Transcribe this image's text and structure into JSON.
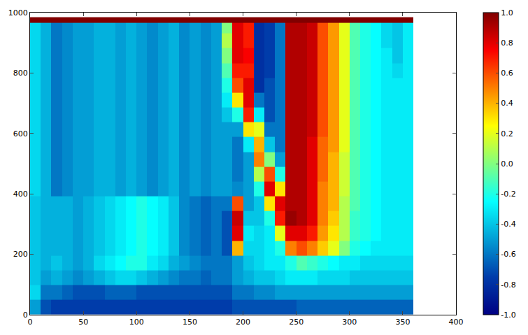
{
  "chart_data": {
    "type": "heatmap",
    "color": "Jet",
    "xlim": [
      0,
      400
    ],
    "xticks": [
      0,
      50,
      100,
      150,
      200,
      250,
      300,
      350,
      400
    ],
    "ylim": [
      0,
      1000
    ],
    "yticks": [
      0,
      200,
      400,
      600,
      800,
      1000
    ],
    "color_range": [
      -1,
      1
    ],
    "color_ticks": [
      {
        "value": -1,
        "label": "-1.0"
      },
      {
        "value": -0.8,
        "label": "-0.8"
      },
      {
        "value": -0.6,
        "label": "-0.6"
      },
      {
        "value": -0.4,
        "label": "-0.4"
      },
      {
        "value": -0.2,
        "label": "-0.2"
      },
      {
        "value": 0,
        "label": "0.0"
      },
      {
        "value": 0.2,
        "label": "0.2"
      },
      {
        "value": 0.4,
        "label": "0.4"
      },
      {
        "value": 0.6,
        "label": "0.6"
      },
      {
        "value": 0.8,
        "label": "0.8"
      },
      {
        "value": 1,
        "label": "1.0"
      }
    ],
    "x": [
      5,
      15,
      25,
      35,
      45,
      55,
      65,
      75,
      85,
      95,
      105,
      115,
      125,
      135,
      145,
      155,
      165,
      175,
      185,
      195,
      205,
      215,
      225,
      235,
      245,
      255,
      265,
      275,
      285,
      295,
      305,
      315,
      325,
      335,
      345,
      355
    ],
    "y": [
      24.5,
      73.5,
      122.5,
      171.5,
      220.5,
      269.5,
      318.5,
      367.5,
      416.5,
      465.5,
      514.5,
      563.5,
      612.5,
      661.5,
      710.5,
      759.5,
      808.5,
      857.5,
      906.5,
      955.5,
      975
    ],
    "cells": [
      [
        -0.5,
        -0.7,
        -0.75,
        -0.75,
        -0.75,
        -0.75,
        -0.75,
        -0.75,
        -0.75,
        -0.75,
        -0.75,
        -0.75,
        -0.75,
        -0.75,
        -0.75,
        -0.75,
        -0.75,
        -0.75,
        -0.75,
        -0.7,
        -0.7,
        -0.7,
        -0.7,
        -0.7,
        -0.7,
        -0.65,
        -0.65,
        -0.65,
        -0.65,
        -0.65,
        -0.65,
        -0.65,
        -0.65,
        -0.65,
        -0.65,
        -0.65
      ],
      [
        -0.35,
        -0.6,
        -0.6,
        -0.65,
        -0.7,
        -0.7,
        -0.7,
        -0.65,
        -0.65,
        -0.65,
        -0.7,
        -0.7,
        -0.7,
        -0.7,
        -0.7,
        -0.7,
        -0.7,
        -0.7,
        -0.7,
        -0.6,
        -0.6,
        -0.55,
        -0.55,
        -0.5,
        -0.5,
        -0.5,
        -0.5,
        -0.5,
        -0.5,
        -0.5,
        -0.5,
        -0.5,
        -0.5,
        -0.5,
        -0.5,
        -0.5
      ],
      [
        -0.4,
        -0.5,
        -0.45,
        -0.5,
        -0.55,
        -0.5,
        -0.45,
        -0.4,
        -0.35,
        -0.35,
        -0.4,
        -0.45,
        -0.5,
        -0.55,
        -0.6,
        -0.6,
        -0.65,
        -0.6,
        -0.6,
        -0.5,
        -0.45,
        -0.4,
        -0.4,
        -0.35,
        -0.3,
        -0.3,
        -0.3,
        -0.35,
        -0.35,
        -0.35,
        -0.4,
        -0.4,
        -0.4,
        -0.4,
        -0.4,
        -0.4
      ],
      [
        -0.4,
        -0.45,
        -0.4,
        -0.45,
        -0.5,
        -0.45,
        -0.35,
        -0.3,
        -0.25,
        -0.2,
        -0.2,
        -0.3,
        -0.35,
        -0.45,
        -0.5,
        -0.55,
        -0.6,
        -0.6,
        -0.6,
        -0.5,
        -0.4,
        -0.35,
        -0.3,
        -0.3,
        -0.2,
        -0.1,
        -0.15,
        -0.2,
        -0.25,
        -0.3,
        -0.3,
        -0.35,
        -0.35,
        -0.35,
        -0.35,
        -0.35
      ],
      [
        -0.4,
        -0.45,
        -0.45,
        -0.45,
        -0.5,
        -0.45,
        -0.4,
        -0.35,
        -0.3,
        -0.25,
        -0.2,
        -0.25,
        -0.3,
        -0.4,
        -0.55,
        -0.6,
        -0.65,
        -0.6,
        -0.7,
        0.4,
        -0.35,
        -0.35,
        -0.3,
        -0.2,
        0.5,
        0.6,
        0.5,
        0.35,
        0.2,
        0.0,
        -0.2,
        -0.25,
        -0.3,
        -0.3,
        -0.3,
        -0.3
      ],
      [
        -0.4,
        -0.45,
        -0.45,
        -0.45,
        -0.5,
        -0.45,
        -0.4,
        -0.35,
        -0.3,
        -0.25,
        -0.2,
        -0.25,
        -0.3,
        -0.4,
        -0.55,
        -0.6,
        -0.65,
        -0.6,
        -0.7,
        0.8,
        -0.3,
        -0.35,
        -0.3,
        0.2,
        0.8,
        0.8,
        0.7,
        0.45,
        0.3,
        0.1,
        -0.15,
        -0.2,
        -0.25,
        -0.3,
        -0.3,
        -0.3
      ],
      [
        -0.4,
        -0.45,
        -0.45,
        -0.45,
        -0.5,
        -0.45,
        -0.4,
        -0.35,
        -0.3,
        -0.25,
        -0.2,
        -0.25,
        -0.3,
        -0.4,
        -0.55,
        -0.6,
        -0.65,
        -0.6,
        -0.7,
        0.85,
        -0.4,
        -0.4,
        -0.2,
        0.7,
        0.95,
        0.9,
        0.8,
        0.5,
        0.35,
        0.1,
        -0.15,
        -0.2,
        -0.25,
        -0.3,
        -0.3,
        -0.3
      ],
      [
        -0.4,
        -0.45,
        -0.45,
        -0.45,
        -0.5,
        -0.45,
        -0.4,
        -0.35,
        -0.3,
        -0.25,
        -0.2,
        -0.25,
        -0.3,
        -0.4,
        -0.55,
        -0.6,
        -0.65,
        -0.6,
        -0.6,
        0.6,
        -0.5,
        -0.4,
        0.3,
        0.8,
        0.9,
        0.9,
        0.8,
        0.5,
        0.4,
        0.1,
        -0.1,
        -0.2,
        -0.25,
        -0.3,
        -0.3,
        -0.3
      ],
      [
        -0.35,
        -0.45,
        -0.6,
        -0.55,
        -0.5,
        -0.5,
        -0.45,
        -0.45,
        -0.5,
        -0.45,
        -0.5,
        -0.55,
        -0.5,
        -0.45,
        -0.55,
        -0.5,
        -0.55,
        -0.5,
        -0.5,
        -0.55,
        -0.5,
        -0.2,
        0.8,
        0.3,
        0.9,
        0.9,
        0.8,
        0.5,
        0.4,
        0.15,
        -0.1,
        -0.2,
        -0.25,
        -0.3,
        -0.3,
        -0.3
      ],
      [
        -0.35,
        -0.45,
        -0.6,
        -0.55,
        -0.5,
        -0.5,
        -0.45,
        -0.45,
        -0.5,
        -0.45,
        -0.5,
        -0.55,
        -0.5,
        -0.45,
        -0.55,
        -0.5,
        -0.55,
        -0.5,
        -0.5,
        -0.6,
        -0.5,
        0.1,
        0.6,
        -0.2,
        0.9,
        0.9,
        0.8,
        0.55,
        0.4,
        0.15,
        -0.1,
        -0.2,
        -0.25,
        -0.3,
        -0.3,
        -0.3
      ],
      [
        -0.35,
        -0.45,
        -0.6,
        -0.55,
        -0.5,
        -0.5,
        -0.45,
        -0.45,
        -0.5,
        -0.45,
        -0.5,
        -0.55,
        -0.5,
        -0.45,
        -0.55,
        -0.5,
        -0.55,
        -0.5,
        -0.5,
        -0.6,
        -0.5,
        0.5,
        0.0,
        -0.5,
        0.9,
        0.9,
        0.8,
        0.55,
        0.4,
        0.15,
        -0.1,
        -0.2,
        -0.25,
        -0.3,
        -0.3,
        -0.3
      ],
      [
        -0.35,
        -0.45,
        -0.6,
        -0.55,
        -0.5,
        -0.5,
        -0.45,
        -0.45,
        -0.5,
        -0.45,
        -0.5,
        -0.55,
        -0.5,
        -0.45,
        -0.55,
        -0.5,
        -0.55,
        -0.5,
        -0.5,
        -0.6,
        -0.3,
        0.4,
        -0.4,
        -0.6,
        0.9,
        0.9,
        0.8,
        0.55,
        0.45,
        0.2,
        -0.1,
        -0.2,
        -0.25,
        -0.3,
        -0.3,
        -0.3
      ],
      [
        -0.35,
        -0.45,
        -0.6,
        -0.55,
        -0.5,
        -0.5,
        -0.45,
        -0.45,
        -0.5,
        -0.45,
        -0.5,
        -0.55,
        -0.5,
        -0.45,
        -0.55,
        -0.5,
        -0.55,
        -0.5,
        -0.5,
        -0.5,
        0.3,
        0.2,
        -0.6,
        -0.6,
        0.9,
        0.9,
        0.85,
        0.6,
        0.45,
        0.2,
        -0.1,
        -0.2,
        -0.25,
        -0.3,
        -0.3,
        -0.3
      ],
      [
        -0.35,
        -0.45,
        -0.6,
        -0.55,
        -0.5,
        -0.5,
        -0.45,
        -0.45,
        -0.5,
        -0.45,
        -0.5,
        -0.55,
        -0.5,
        -0.45,
        -0.55,
        -0.5,
        -0.55,
        -0.5,
        -0.4,
        -0.2,
        0.7,
        -0.3,
        -0.7,
        -0.6,
        0.9,
        0.9,
        0.85,
        0.6,
        0.45,
        0.2,
        -0.1,
        -0.2,
        -0.25,
        -0.3,
        -0.3,
        -0.3
      ],
      [
        -0.35,
        -0.45,
        -0.6,
        -0.55,
        -0.5,
        -0.5,
        -0.45,
        -0.45,
        -0.5,
        -0.45,
        -0.5,
        -0.55,
        -0.5,
        -0.45,
        -0.55,
        -0.5,
        -0.55,
        -0.5,
        -0.3,
        0.3,
        0.8,
        -0.6,
        -0.7,
        -0.6,
        0.9,
        0.9,
        0.85,
        0.6,
        0.45,
        0.2,
        -0.1,
        -0.2,
        -0.25,
        -0.3,
        -0.3,
        -0.3
      ],
      [
        -0.35,
        -0.45,
        -0.6,
        -0.55,
        -0.5,
        -0.5,
        -0.45,
        -0.45,
        -0.5,
        -0.45,
        -0.5,
        -0.55,
        -0.5,
        -0.45,
        -0.55,
        -0.5,
        -0.55,
        -0.5,
        -0.2,
        0.6,
        0.8,
        -0.8,
        -0.7,
        -0.6,
        0.9,
        0.9,
        0.85,
        0.6,
        0.45,
        0.2,
        -0.1,
        -0.2,
        -0.25,
        -0.3,
        -0.3,
        -0.3
      ],
      [
        -0.35,
        -0.45,
        -0.6,
        -0.55,
        -0.5,
        -0.5,
        -0.45,
        -0.45,
        -0.5,
        -0.45,
        -0.5,
        -0.55,
        -0.5,
        -0.45,
        -0.55,
        -0.5,
        -0.55,
        -0.5,
        -0.1,
        0.7,
        0.7,
        -0.8,
        -0.75,
        -0.6,
        0.9,
        0.9,
        0.85,
        0.6,
        0.45,
        0.2,
        -0.1,
        -0.2,
        -0.25,
        -0.3,
        -0.35,
        -0.3
      ],
      [
        -0.35,
        -0.45,
        -0.6,
        -0.55,
        -0.5,
        -0.5,
        -0.45,
        -0.45,
        -0.5,
        -0.45,
        -0.5,
        -0.55,
        -0.5,
        -0.45,
        -0.55,
        -0.5,
        -0.55,
        -0.5,
        0.0,
        0.8,
        0.75,
        -0.8,
        -0.75,
        -0.6,
        0.9,
        0.9,
        0.85,
        0.6,
        0.45,
        0.2,
        -0.1,
        -0.2,
        -0.25,
        -0.3,
        -0.4,
        -0.3
      ],
      [
        -0.35,
        -0.45,
        -0.6,
        -0.55,
        -0.5,
        -0.5,
        -0.45,
        -0.45,
        -0.5,
        -0.45,
        -0.5,
        -0.55,
        -0.5,
        -0.45,
        -0.55,
        -0.5,
        -0.55,
        -0.5,
        0.1,
        0.8,
        0.7,
        -0.8,
        -0.75,
        -0.6,
        0.9,
        0.9,
        0.85,
        0.6,
        0.45,
        0.2,
        -0.1,
        -0.2,
        -0.25,
        -0.35,
        -0.4,
        -0.3
      ],
      [
        -0.35,
        -0.45,
        -0.6,
        -0.55,
        -0.5,
        -0.5,
        -0.45,
        -0.45,
        -0.5,
        -0.45,
        -0.5,
        -0.55,
        -0.5,
        -0.45,
        -0.55,
        -0.5,
        -0.55,
        -0.5,
        0.0,
        0.8,
        0.7,
        -0.8,
        -0.75,
        -0.6,
        0.9,
        0.9,
        0.85,
        0.6,
        0.45,
        0.2,
        -0.1,
        -0.2,
        -0.25,
        -0.35,
        -0.4,
        -0.3
      ],
      [
        1,
        1,
        1,
        1,
        1,
        1,
        1,
        1,
        1,
        1,
        1,
        1,
        1,
        1,
        1,
        1,
        1,
        1,
        1,
        1,
        1,
        1,
        1,
        1,
        1,
        1,
        1,
        1,
        1,
        1,
        1,
        1,
        1,
        1,
        1,
        1
      ]
    ]
  }
}
